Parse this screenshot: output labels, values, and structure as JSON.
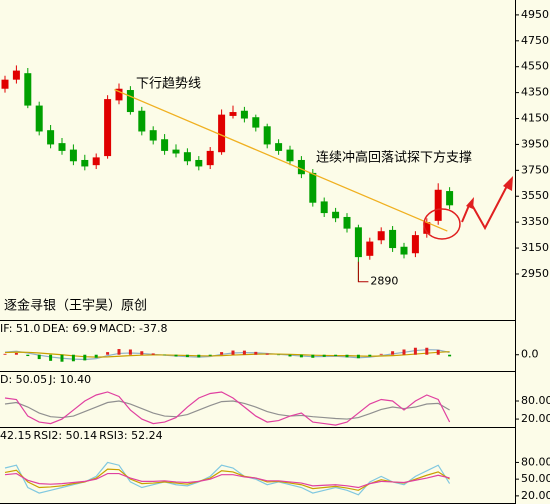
{
  "chart_data": [
    {
      "type": "candlestick",
      "open": [
        4380,
        4450,
        4500,
        4250,
        4060,
        3960,
        3910,
        3830,
        3790,
        3860,
        4290,
        4370,
        4210,
        4060,
        3990,
        3910,
        3890,
        3830,
        3790,
        3890,
        4170,
        4210,
        4160,
        4090,
        3960,
        3910,
        3830,
        3730,
        3510,
        3430,
        3390,
        3310,
        3090,
        3210,
        3290,
        3160,
        3110,
        3260,
        3360,
        3590
      ],
      "high": [
        4480,
        4560,
        4540,
        4280,
        4100,
        4000,
        3950,
        3870,
        3880,
        4330,
        4420,
        4400,
        4240,
        4090,
        4030,
        3950,
        3920,
        3860,
        3930,
        4220,
        4250,
        4240,
        4180,
        4110,
        3990,
        3940,
        3860,
        3760,
        3540,
        3460,
        3420,
        3330,
        3230,
        3310,
        3320,
        3190,
        3280,
        3380,
        3650,
        3620
      ],
      "low": [
        4350,
        4420,
        4230,
        4020,
        3920,
        3870,
        3790,
        3750,
        3760,
        3840,
        4260,
        4180,
        4020,
        3950,
        3870,
        3850,
        3790,
        3750,
        3760,
        3870,
        4150,
        4120,
        4050,
        3920,
        3870,
        3790,
        3690,
        3470,
        3390,
        3350,
        3270,
        2890,
        3060,
        3180,
        3120,
        3070,
        3080,
        3230,
        3330,
        3450
      ],
      "close": [
        4450,
        4520,
        4250,
        4050,
        3950,
        3900,
        3820,
        3780,
        3850,
        4300,
        4380,
        4200,
        4050,
        3980,
        3900,
        3880,
        3820,
        3780,
        3900,
        4180,
        4200,
        4150,
        4080,
        3950,
        3900,
        3820,
        3720,
        3500,
        3420,
        3380,
        3300,
        3080,
        3200,
        3280,
        3150,
        3100,
        3250,
        3350,
        3600,
        3480
      ],
      "up_color": "#e00000",
      "down_color": "#00a000",
      "ylim": [
        2610,
        5065
      ],
      "yticks": [
        4950,
        4750,
        4550,
        4350,
        4150,
        3950,
        3750,
        3550,
        3350,
        3150,
        2950
      ],
      "trendline": {
        "x": [
          9.6,
          38.8
        ],
        "y": [
          4373,
          3281
        ],
        "color": "#f0b020"
      },
      "annotations": [
        "下行趋势线",
        "连续冲高回落试探下方支撑"
      ],
      "caption": "逐金寻银（王宇昊）原创"
    },
    {
      "type": "line",
      "ylim": [
        -350,
        750
      ],
      "yticks": [
        {
          "value": 0,
          "label": "0.0"
        }
      ],
      "series": [
        {
          "name": "IF: 51.0",
          "color": "#8fb0c8",
          "values": [
            60,
            80,
            40,
            -10,
            -50,
            -80,
            -100,
            -110,
            -90,
            -20,
            30,
            40,
            30,
            10,
            -10,
            -30,
            -45,
            -55,
            -40,
            10,
            40,
            50,
            45,
            30,
            10,
            -10,
            -30,
            -45,
            -40,
            -35,
            -50,
            -70,
            -55,
            -20,
            20,
            55,
            95,
            115,
            110,
            51
          ]
        },
        {
          "name": "DEA: 69.9",
          "color": "#c8a000",
          "values": [
            50,
            60,
            55,
            40,
            20,
            0,
            -25,
            -45,
            -55,
            -50,
            -35,
            -20,
            -10,
            -5,
            -5,
            -10,
            -18,
            -25,
            -28,
            -20,
            -8,
            3,
            12,
            16,
            15,
            10,
            0,
            -10,
            -16,
            -20,
            -20,
            -30,
            -35,
            -30,
            -20,
            -5,
            15,
            35,
            55,
            69.9
          ]
        },
        {
          "name": "MACD: -37.8",
          "color": "#e040a0",
          "style": "bar",
          "values": [
            20,
            40,
            -30,
            -100,
            -140,
            -160,
            -150,
            -130,
            -70,
            60,
            130,
            120,
            80,
            30,
            -10,
            -40,
            -54,
            -60,
            -24,
            60,
            96,
            94,
            66,
            28,
            -10,
            -40,
            -60,
            -70,
            -48,
            -30,
            -60,
            -80,
            -40,
            20,
            80,
            120,
            160,
            160,
            110,
            -37.8
          ]
        }
      ]
    },
    {
      "type": "line",
      "ylim": [
        -3,
        173
      ],
      "yticks": [
        {
          "value": 80,
          "label": "80.00"
        },
        {
          "value": 20,
          "label": "20.00"
        }
      ],
      "series": [
        {
          "name": "D: 50.05",
          "color": "#909090",
          "values": [
            70,
            75,
            60,
            40,
            28,
            25,
            30,
            45,
            60,
            75,
            80,
            70,
            55,
            40,
            30,
            28,
            35,
            50,
            65,
            78,
            80,
            72,
            60,
            45,
            35,
            30,
            32,
            28,
            25,
            22,
            20,
            25,
            38,
            52,
            60,
            55,
            60,
            70,
            72,
            50.05
          ]
        },
        {
          "name": "J: 10.40",
          "color": "#e040a0",
          "values": [
            90,
            85,
            30,
            10,
            5,
            20,
            50,
            80,
            100,
            110,
            95,
            50,
            20,
            5,
            10,
            25,
            60,
            90,
            105,
            110,
            90,
            60,
            30,
            10,
            15,
            30,
            40,
            10,
            5,
            0,
            10,
            40,
            70,
            85,
            80,
            50,
            80,
            100,
            85,
            10.4
          ]
        }
      ]
    },
    {
      "type": "line",
      "ylim": [
        9,
        140
      ],
      "yticks": [
        {
          "value": 80,
          "label": "80.00"
        },
        {
          "value": 50,
          "label": "50.00"
        },
        {
          "value": 20,
          "label": "20.00"
        }
      ],
      "series": [
        {
          "name": "42.15",
          "color": "#80c8e0",
          "values": [
            70,
            75,
            35,
            25,
            30,
            35,
            40,
            45,
            55,
            80,
            75,
            45,
            35,
            40,
            45,
            40,
            38,
            45,
            55,
            75,
            70,
            55,
            50,
            40,
            45,
            40,
            35,
            25,
            30,
            35,
            30,
            22,
            45,
            55,
            45,
            40,
            55,
            65,
            75,
            42.15
          ]
        },
        {
          "name": "RSI2: 50.14",
          "color": "#c8a000",
          "values": [
            62,
            66,
            45,
            35,
            36,
            38,
            42,
            45,
            52,
            68,
            67,
            50,
            42,
            43,
            45,
            43,
            41,
            46,
            52,
            65,
            63,
            55,
            52,
            45,
            46,
            43,
            40,
            33,
            35,
            37,
            34,
            30,
            42,
            49,
            45,
            43,
            50,
            57,
            63,
            50.14
          ]
        },
        {
          "name": "RSI3: 52.24",
          "color": "#e040a0",
          "values": [
            58,
            60,
            48,
            42,
            41,
            42,
            44,
            46,
            50,
            60,
            60,
            52,
            46,
            46,
            47,
            45,
            44,
            46,
            50,
            58,
            58,
            54,
            52,
            47,
            47,
            45,
            43,
            38,
            39,
            40,
            38,
            35,
            42,
            46,
            45,
            44,
            48,
            52,
            57,
            52.24
          ]
        }
      ]
    }
  ]
}
